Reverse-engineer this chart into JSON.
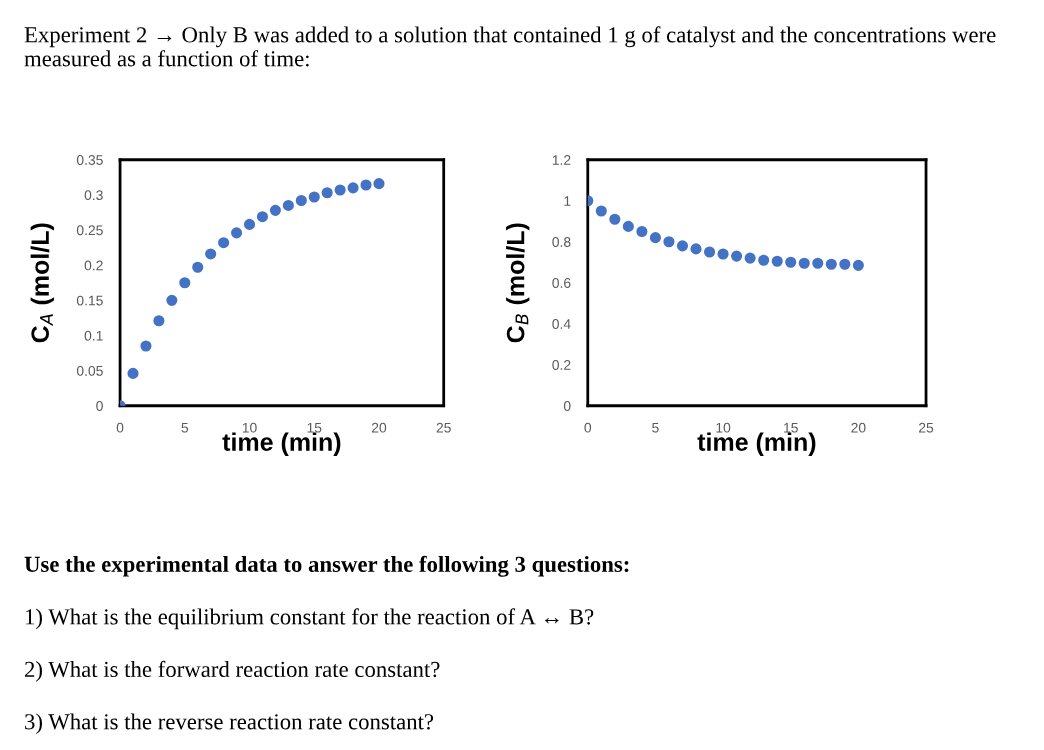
{
  "chart_data": [
    {
      "type": "scatter",
      "title": "Experiment 2 → Only B was added to a solution that contained 1 g of catalyst and the concentrations were measured as a function of time:",
      "xlabel": "time (min)",
      "ylabel": "C$_{A}$ (mol/L)",
      "marker": "circle",
      "grid": false,
      "legend": false,
      "x": [
        0,
        1,
        2,
        3,
        4,
        5,
        6,
        7,
        8,
        9,
        10,
        11,
        12,
        13,
        14,
        15,
        16,
        17,
        18,
        19,
        20
      ],
      "series": [
        {
          "color": "#4472c4",
          "values": [
            0,
            0.046,
            0.085,
            0.121,
            0.15,
            0.175,
            0.197,
            0.216,
            0.232,
            0.246,
            0.258,
            0.269,
            0.278,
            0.285,
            0.292,
            0.297,
            0.303,
            0.307,
            0.31,
            0.314,
            0.316
          ]
        }
      ],
      "xlim": [
        0,
        25
      ],
      "xticks": [
        0,
        5,
        10,
        15,
        20,
        25
      ],
      "ylim": [
        0,
        0.35
      ],
      "yticks": [
        0,
        0.05,
        0.1,
        0.15,
        0.2,
        0.25,
        0.3,
        0.35
      ]
    },
    {
      "type": "scatter",
      "xlabel": "time (min)",
      "ylabel": "C$_{B}$ (mol/L)",
      "marker": "circle",
      "grid": false,
      "legend": false,
      "x": [
        0,
        1,
        2,
        3,
        4,
        5,
        6,
        7,
        8,
        9,
        10,
        11,
        12,
        13,
        14,
        15,
        16,
        17,
        18,
        19,
        20
      ],
      "series": [
        {
          "color": "#4472c4",
          "values": [
            1.0,
            0.95,
            0.91,
            0.875,
            0.85,
            0.82,
            0.8,
            0.78,
            0.765,
            0.75,
            0.74,
            0.73,
            0.72,
            0.71,
            0.705,
            0.7,
            0.695,
            0.695,
            0.69,
            0.69,
            0.685
          ]
        }
      ],
      "xlim": [
        0,
        25
      ],
      "xticks": [
        0,
        5,
        10,
        15,
        20,
        25
      ],
      "ylim": [
        0,
        1.2
      ],
      "yticks": [
        0,
        0.2,
        0.4,
        0.6,
        0.8,
        1,
        1.2
      ],
      "annotations": [
        "Use the experimental data to answer the following 3 questions:",
        "1) What is the equilibrium constant for the reaction of A ↔ B?",
        "2) What is the forward reaction rate constant?",
        "3) What is the reverse reaction rate constant?"
      ]
    }
  ]
}
